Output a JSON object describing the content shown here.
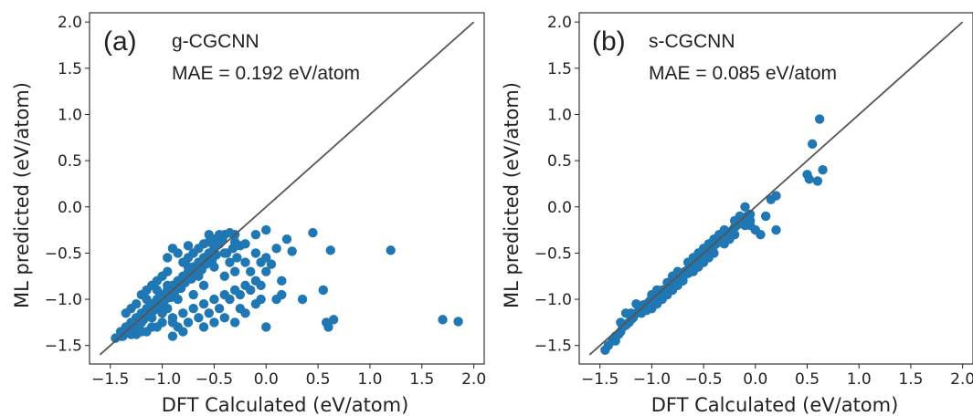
{
  "chart_data": [
    {
      "type": "scatter",
      "panel_label": "(a)",
      "model": "g-CGCNN",
      "mae_text": "MAE = 0.192 eV/atom",
      "xlabel": "DFT Calculated (eV/atom)",
      "ylabel": "ML predicted (eV/atom)",
      "xlim": [
        -1.7,
        2.1
      ],
      "ylim": [
        -1.7,
        2.1
      ],
      "xticks": [
        "−1.5",
        "−1.0",
        "−0.5",
        "0.0",
        "0.5",
        "1.0",
        "1.5",
        "2.0"
      ],
      "yticks": [
        "−1.5",
        "−1.0",
        "−0.5",
        "0.0",
        "0.5",
        "1.0",
        "1.5",
        "2.0"
      ],
      "marker_color": "#1f77b4",
      "line_color": "#555555",
      "diagonal": [
        [
          -1.6,
          -1.6
        ],
        [
          2.0,
          2.0
        ]
      ],
      "points": [
        [
          -1.45,
          -1.42
        ],
        [
          -1.4,
          -1.35
        ],
        [
          -1.38,
          -1.4
        ],
        [
          -1.35,
          -1.3
        ],
        [
          -1.32,
          -1.36
        ],
        [
          -1.3,
          -1.25
        ],
        [
          -1.28,
          -1.32
        ],
        [
          -1.25,
          -1.2
        ],
        [
          -1.22,
          -1.28
        ],
        [
          -1.2,
          -1.15
        ],
        [
          -1.18,
          -1.22
        ],
        [
          -1.15,
          -1.1
        ],
        [
          -1.12,
          -1.18
        ],
        [
          -1.1,
          -1.05
        ],
        [
          -1.08,
          -1.12
        ],
        [
          -1.05,
          -1.0
        ],
        [
          -1.02,
          -1.08
        ],
        [
          -1.0,
          -0.95
        ],
        [
          -0.98,
          -1.02
        ],
        [
          -0.95,
          -0.9
        ],
        [
          -0.92,
          -0.98
        ],
        [
          -0.9,
          -0.85
        ],
        [
          -0.88,
          -0.92
        ],
        [
          -0.85,
          -0.8
        ],
        [
          -0.82,
          -0.88
        ],
        [
          -0.8,
          -0.75
        ],
        [
          -0.78,
          -0.82
        ],
        [
          -0.75,
          -0.7
        ],
        [
          -0.72,
          -0.78
        ],
        [
          -0.7,
          -0.65
        ],
        [
          -0.68,
          -0.72
        ],
        [
          -0.65,
          -0.6
        ],
        [
          -0.62,
          -0.68
        ],
        [
          -0.6,
          -0.55
        ],
        [
          -0.58,
          -0.62
        ],
        [
          -0.55,
          -0.5
        ],
        [
          -0.52,
          -0.58
        ],
        [
          -0.5,
          -0.45
        ],
        [
          -0.48,
          -0.52
        ],
        [
          -0.45,
          -0.4
        ],
        [
          -0.42,
          -0.35
        ],
        [
          -0.4,
          -0.3
        ],
        [
          -0.38,
          -0.5
        ],
        [
          -0.35,
          -0.28
        ],
        [
          -0.32,
          -0.45
        ],
        [
          -0.3,
          -0.38
        ],
        [
          -0.28,
          -0.55
        ],
        [
          -0.25,
          -0.42
        ],
        [
          -1.3,
          -1.1
        ],
        [
          -1.25,
          -1.05
        ],
        [
          -1.2,
          -0.95
        ],
        [
          -1.15,
          -0.9
        ],
        [
          -1.1,
          -0.85
        ],
        [
          -1.05,
          -0.8
        ],
        [
          -1.0,
          -0.75
        ],
        [
          -0.95,
          -0.7
        ],
        [
          -1.2,
          -1.35
        ],
        [
          -1.1,
          -1.3
        ],
        [
          -1.0,
          -1.25
        ],
        [
          -0.9,
          -1.2
        ],
        [
          -0.8,
          -1.15
        ],
        [
          -0.7,
          -1.1
        ],
        [
          -0.6,
          -1.05
        ],
        [
          -0.5,
          -1.0
        ],
        [
          -0.4,
          -0.95
        ],
        [
          -0.3,
          -0.9
        ],
        [
          -0.2,
          -0.85
        ],
        [
          -0.1,
          -0.8
        ],
        [
          -0.9,
          -1.4
        ],
        [
          -0.85,
          -1.3
        ],
        [
          -0.75,
          -1.25
        ],
        [
          -0.65,
          -1.2
        ],
        [
          -0.55,
          -1.15
        ],
        [
          -0.45,
          -1.1
        ],
        [
          -0.35,
          -1.0
        ],
        [
          -0.25,
          -0.95
        ],
        [
          -0.15,
          -0.9
        ],
        [
          -0.05,
          -0.85
        ],
        [
          -0.6,
          -0.4
        ],
        [
          -0.7,
          -0.5
        ],
        [
          -0.8,
          -0.6
        ],
        [
          -0.5,
          -0.35
        ],
        [
          -0.55,
          -0.3
        ],
        [
          -0.45,
          -0.3
        ],
        [
          -0.4,
          -0.5
        ],
        [
          -0.35,
          -0.6
        ],
        [
          -0.3,
          -0.7
        ],
        [
          -0.2,
          -0.6
        ],
        [
          -0.1,
          -0.5
        ],
        [
          -0.05,
          -0.6
        ],
        [
          0.0,
          -0.55
        ],
        [
          -0.15,
          -0.7
        ],
        [
          0.0,
          -0.7
        ],
        [
          -0.2,
          -0.4
        ],
        [
          -0.1,
          -0.3
        ],
        [
          -0.3,
          -0.3
        ],
        [
          -0.9,
          -0.45
        ],
        [
          -0.7,
          -0.95
        ],
        [
          -0.6,
          -0.85
        ],
        [
          -0.4,
          -0.75
        ],
        [
          -0.5,
          -0.65
        ],
        [
          -0.65,
          -0.75
        ],
        [
          -0.75,
          -0.55
        ],
        [
          -1.05,
          -1.3
        ],
        [
          -1.1,
          -1.2
        ],
        [
          -1.2,
          -1.25
        ],
        [
          -1.3,
          -1.38
        ],
        [
          -1.4,
          -1.4
        ],
        [
          -1.15,
          -1.35
        ],
        [
          -0.95,
          -1.1
        ],
        [
          -0.85,
          -1.0
        ],
        [
          -1.0,
          -1.15
        ],
        [
          -0.3,
          -1.25
        ],
        [
          -0.2,
          -1.15
        ],
        [
          -0.1,
          -1.05
        ],
        [
          0.0,
          -1.3
        ],
        [
          -0.05,
          -1.0
        ],
        [
          0.1,
          -1.0
        ],
        [
          0.15,
          -0.8
        ],
        [
          0.1,
          -0.45
        ],
        [
          0.05,
          -0.62
        ],
        [
          0.0,
          -0.25
        ],
        [
          -0.6,
          -1.3
        ],
        [
          -0.8,
          -1.35
        ],
        [
          -0.5,
          -1.25
        ],
        [
          -0.4,
          -1.2
        ],
        [
          -0.25,
          -1.1
        ],
        [
          -0.9,
          -1.25
        ],
        [
          0.2,
          -0.35
        ],
        [
          0.25,
          -0.48
        ],
        [
          0.15,
          -0.95
        ],
        [
          0.35,
          -1.0
        ],
        [
          0.45,
          -0.28
        ],
        [
          0.55,
          -0.9
        ],
        [
          0.6,
          -1.3
        ],
        [
          0.65,
          -1.22
        ],
        [
          0.62,
          -0.47
        ],
        [
          0.58,
          -1.25
        ],
        [
          1.2,
          -0.47
        ],
        [
          1.7,
          -1.22
        ],
        [
          1.85,
          -1.24
        ],
        [
          -1.35,
          -1.15
        ],
        [
          -1.25,
          -1.38
        ],
        [
          -0.95,
          -0.55
        ],
        [
          -0.85,
          -0.5
        ],
        [
          -0.75,
          -0.42
        ],
        [
          -0.65,
          -0.45
        ],
        [
          -0.55,
          -0.38
        ],
        [
          -1.05,
          -0.9
        ],
        [
          -1.15,
          -1.0
        ],
        [
          -0.95,
          -0.85
        ],
        [
          -0.75,
          -0.65
        ]
      ]
    },
    {
      "type": "scatter",
      "panel_label": "(b)",
      "model": "s-CGCNN",
      "mae_text": "MAE = 0.085 eV/atom",
      "xlabel": "DFT Calculated (eV/atom)",
      "ylabel": "ML predicted (eV/atom)",
      "xlim": [
        -1.7,
        2.1
      ],
      "ylim": [
        -1.7,
        2.1
      ],
      "xticks": [
        "−1.5",
        "−1.0",
        "−0.5",
        "0.0",
        "0.5",
        "1.0",
        "1.5",
        "2.0"
      ],
      "yticks": [
        "−1.5",
        "−1.0",
        "−0.5",
        "0.0",
        "0.5",
        "1.0",
        "1.5",
        "2.0"
      ],
      "marker_color": "#1f77b4",
      "line_color": "#555555",
      "diagonal": [
        [
          -1.6,
          -1.6
        ],
        [
          2.0,
          2.0
        ]
      ],
      "points": [
        [
          -1.45,
          -1.55
        ],
        [
          -1.42,
          -1.5
        ],
        [
          -1.38,
          -1.45
        ],
        [
          -1.35,
          -1.4
        ],
        [
          -1.32,
          -1.38
        ],
        [
          -1.3,
          -1.35
        ],
        [
          -1.28,
          -1.3
        ],
        [
          -1.25,
          -1.28
        ],
        [
          -1.22,
          -1.25
        ],
        [
          -1.2,
          -1.22
        ],
        [
          -1.18,
          -1.2
        ],
        [
          -1.15,
          -1.15
        ],
        [
          -1.12,
          -1.12
        ],
        [
          -1.1,
          -1.1
        ],
        [
          -1.08,
          -1.06
        ],
        [
          -1.05,
          -1.05
        ],
        [
          -1.02,
          -1.02
        ],
        [
          -1.0,
          -1.0
        ],
        [
          -0.98,
          -1.0
        ],
        [
          -0.95,
          -0.98
        ],
        [
          -0.92,
          -0.95
        ],
        [
          -0.9,
          -0.9
        ],
        [
          -0.88,
          -0.9
        ],
        [
          -0.85,
          -0.88
        ],
        [
          -0.82,
          -0.85
        ],
        [
          -0.8,
          -0.82
        ],
        [
          -0.78,
          -0.8
        ],
        [
          -0.75,
          -0.78
        ],
        [
          -0.72,
          -0.75
        ],
        [
          -0.7,
          -0.72
        ],
        [
          -0.68,
          -0.7
        ],
        [
          -0.65,
          -0.68
        ],
        [
          -0.62,
          -0.65
        ],
        [
          -0.6,
          -0.62
        ],
        [
          -0.58,
          -0.6
        ],
        [
          -0.55,
          -0.58
        ],
        [
          -0.52,
          -0.55
        ],
        [
          -0.5,
          -0.52
        ],
        [
          -0.48,
          -0.5
        ],
        [
          -0.45,
          -0.48
        ],
        [
          -0.42,
          -0.45
        ],
        [
          -0.4,
          -0.42
        ],
        [
          -0.38,
          -0.4
        ],
        [
          -0.35,
          -0.38
        ],
        [
          -0.32,
          -0.35
        ],
        [
          -0.3,
          -0.32
        ],
        [
          -0.28,
          -0.3
        ],
        [
          -0.25,
          -0.28
        ],
        [
          -0.22,
          -0.25
        ],
        [
          -0.2,
          -0.22
        ],
        [
          -0.18,
          -0.2
        ],
        [
          -0.15,
          -0.18
        ],
        [
          -0.12,
          -0.15
        ],
        [
          -0.1,
          -0.12
        ],
        [
          -0.08,
          -0.1
        ],
        [
          -0.05,
          -0.08
        ],
        [
          -1.3,
          -1.25
        ],
        [
          -1.2,
          -1.15
        ],
        [
          -1.1,
          -1.15
        ],
        [
          -1.0,
          -0.95
        ],
        [
          -0.9,
          -0.95
        ],
        [
          -0.8,
          -0.75
        ],
        [
          -0.7,
          -0.78
        ],
        [
          -0.6,
          -0.55
        ],
        [
          -0.5,
          -0.6
        ],
        [
          -0.4,
          -0.35
        ],
        [
          -0.3,
          -0.4
        ],
        [
          -0.2,
          -0.15
        ],
        [
          -0.1,
          -0.2
        ],
        [
          -1.15,
          -1.05
        ],
        [
          -1.05,
          -1.12
        ],
        [
          -0.95,
          -0.9
        ],
        [
          -0.85,
          -0.82
        ],
        [
          -0.75,
          -0.7
        ],
        [
          -0.65,
          -0.72
        ],
        [
          -0.55,
          -0.5
        ],
        [
          -0.45,
          -0.55
        ],
        [
          -0.35,
          -0.3
        ],
        [
          -0.25,
          -0.35
        ],
        [
          -0.15,
          -0.1
        ],
        [
          -0.05,
          -0.15
        ],
        [
          -0.1,
          0.0
        ],
        [
          -0.05,
          -0.2
        ],
        [
          0.0,
          -0.25
        ],
        [
          0.05,
          -0.3
        ],
        [
          0.1,
          -0.1
        ],
        [
          0.15,
          0.08
        ],
        [
          0.2,
          0.12
        ],
        [
          0.2,
          -0.25
        ],
        [
          0.5,
          0.35
        ],
        [
          0.52,
          0.3
        ],
        [
          0.55,
          0.68
        ],
        [
          0.6,
          0.28
        ],
        [
          0.62,
          0.95
        ],
        [
          0.65,
          0.4
        ],
        [
          -1.0,
          -1.1
        ],
        [
          -0.9,
          -1.0
        ],
        [
          -0.8,
          -0.9
        ],
        [
          -0.7,
          -0.8
        ],
        [
          -0.6,
          -0.7
        ],
        [
          -0.5,
          -0.45
        ],
        [
          -0.4,
          -0.5
        ],
        [
          -0.3,
          -0.25
        ],
        [
          -0.2,
          -0.3
        ],
        [
          -1.25,
          -1.15
        ],
        [
          -1.35,
          -1.45
        ],
        [
          -0.95,
          -1.05
        ],
        [
          -0.85,
          -0.95
        ],
        [
          -0.75,
          -0.85
        ],
        [
          -0.65,
          -0.6
        ],
        [
          -0.55,
          -0.65
        ],
        [
          -0.45,
          -0.4
        ]
      ]
    }
  ]
}
